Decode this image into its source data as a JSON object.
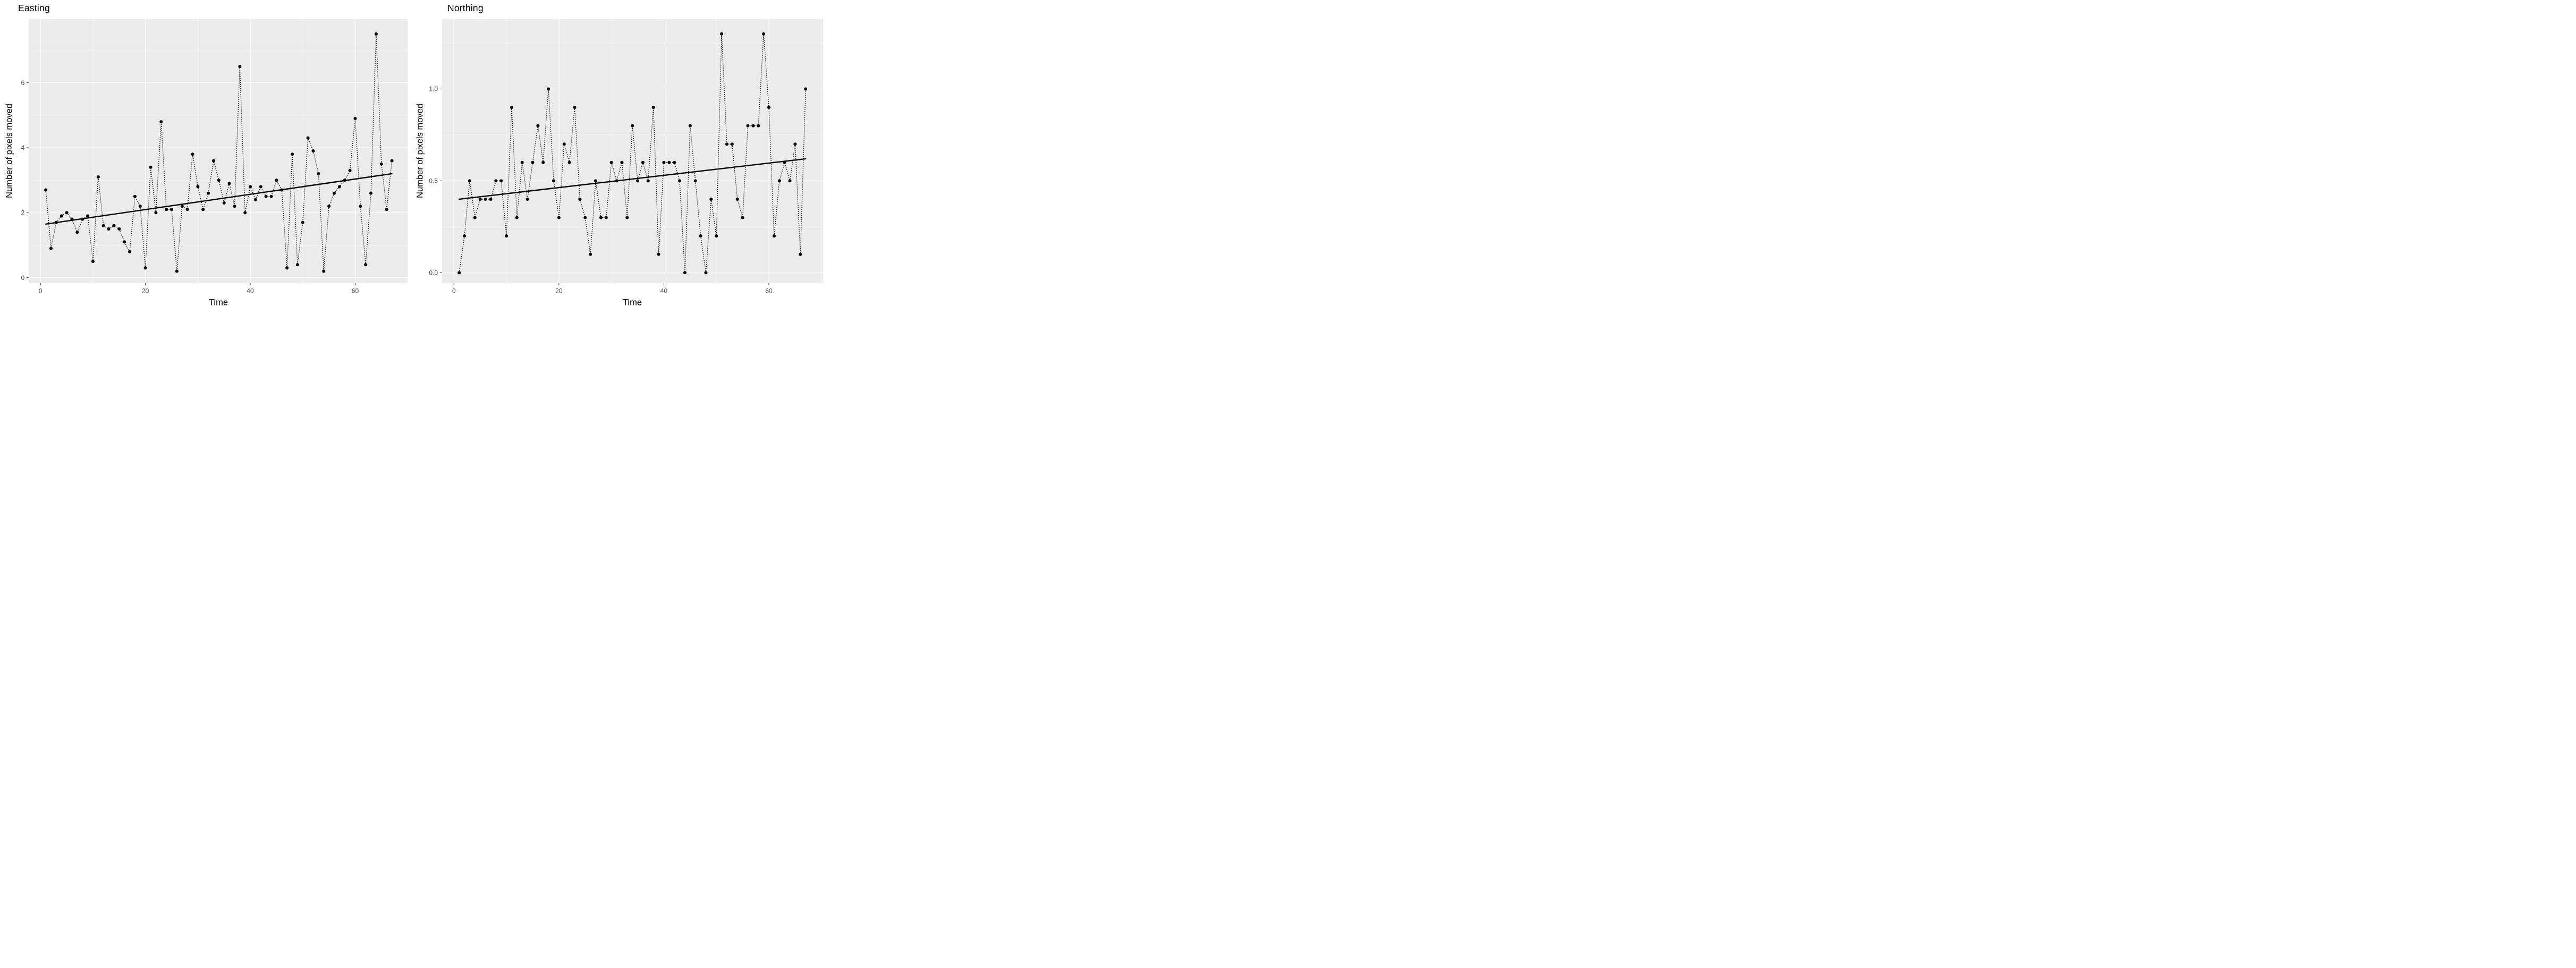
{
  "figure": {
    "background": "#ffffff",
    "panel_fill": "#EBEBEB",
    "grid_color": "#FFFFFF",
    "tick_color": "#333333",
    "tick_label_color": "#4D4D4D",
    "data_color": "#000000"
  },
  "chart_data": [
    {
      "type": "line",
      "title": "Easting",
      "xlabel": "Time",
      "ylabel": "Number of pixels moved",
      "x_ticks": [
        0,
        20,
        40,
        60
      ],
      "x_minor_ticks": [
        10,
        30,
        50,
        70
      ],
      "y_ticks": [
        0,
        2,
        4,
        6
      ],
      "y_tick_labels": [
        "0",
        "2",
        "4",
        "6"
      ],
      "y_minor_ticks": [
        1,
        3,
        5,
        7
      ],
      "xlim": [
        -2.26,
        70.1
      ],
      "ylim": [
        -0.165,
        7.96
      ],
      "grid": "on",
      "marker": "point",
      "line_style": "dotted",
      "time": {
        "start": 1,
        "end": 67,
        "step": 1
      },
      "values": [
        2.7,
        0.9,
        1.7,
        1.9,
        2.0,
        1.8,
        1.4,
        1.8,
        1.9,
        0.5,
        3.1,
        1.6,
        1.5,
        1.6,
        1.5,
        1.1,
        0.8,
        2.5,
        2.2,
        0.3,
        3.4,
        2.0,
        4.8,
        2.1,
        2.1,
        0.2,
        2.2,
        2.1,
        3.8,
        2.8,
        2.1,
        2.6,
        3.6,
        3.0,
        2.3,
        2.9,
        2.2,
        6.5,
        2.0,
        2.8,
        2.4,
        2.8,
        2.5,
        2.5,
        3.0,
        2.7,
        0.3,
        3.8,
        0.4,
        1.7,
        4.3,
        3.9,
        3.2,
        0.2,
        2.2,
        2.6,
        2.8,
        3.0,
        3.3,
        4.9,
        2.2,
        0.4,
        2.6,
        7.5,
        3.5,
        2.1,
        3.6
      ],
      "trend_line": {
        "x1": 1,
        "y1": 1.65,
        "x2": 67,
        "y2": 3.2
      }
    },
    {
      "type": "line",
      "title": "Northing",
      "xlabel": "Time",
      "ylabel": "Number of pixels moved",
      "x_ticks": [
        0,
        20,
        40,
        60
      ],
      "x_minor_ticks": [
        10,
        30,
        50,
        70
      ],
      "y_ticks": [
        0.0,
        0.5,
        1.0
      ],
      "y_tick_labels": [
        "0.0",
        "0.5",
        "1.0"
      ],
      "y_minor_ticks": [
        0.25,
        0.75,
        1.25
      ],
      "xlim": [
        -2.27,
        70.35
      ],
      "ylim": [
        -0.0565,
        1.381
      ],
      "grid": "on",
      "marker": "point",
      "line_style": "dotted",
      "time": {
        "start": 1,
        "end": 67,
        "step": 1
      },
      "values": [
        0.0,
        0.2,
        0.5,
        0.3,
        0.4,
        0.4,
        0.4,
        0.5,
        0.5,
        0.2,
        0.9,
        0.3,
        0.6,
        0.4,
        0.6,
        0.8,
        0.6,
        1.0,
        0.5,
        0.3,
        0.7,
        0.6,
        0.9,
        0.4,
        0.3,
        0.1,
        0.5,
        0.3,
        0.3,
        0.6,
        0.5,
        0.6,
        0.3,
        0.8,
        0.5,
        0.6,
        0.5,
        0.9,
        0.1,
        0.6,
        0.6,
        0.6,
        0.5,
        0.0,
        0.8,
        0.5,
        0.2,
        0.0,
        0.4,
        0.2,
        1.3,
        0.7,
        0.7,
        0.4,
        0.3,
        0.8,
        0.8,
        0.8,
        1.3,
        0.9,
        0.2,
        0.5,
        0.6,
        0.5,
        0.7,
        0.1,
        1.0
      ],
      "trend_line": {
        "x1": 1,
        "y1": 0.4,
        "x2": 67,
        "y2": 0.62
      }
    }
  ]
}
